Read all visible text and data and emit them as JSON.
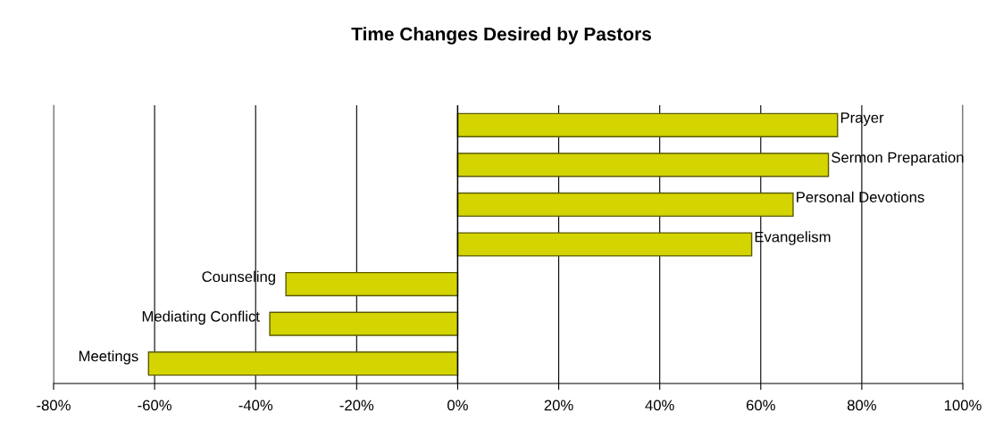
{
  "chart_data": {
    "type": "bar",
    "orientation": "horizontal",
    "title": "Time Changes Desired by Pastors",
    "categories": [
      "Prayer",
      "Sermon Preparation",
      "Personal Devotions",
      "Evangelism",
      "Counseling",
      "Mediating Conflict",
      "Meetings"
    ],
    "values": [
      0.752,
      0.734,
      0.664,
      0.582,
      -0.34,
      -0.372,
      -0.612
    ],
    "color": "#d4d400",
    "xlim": [
      -0.8,
      1.0
    ],
    "xticks": [
      {
        "value": -0.8,
        "label": "-80%"
      },
      {
        "value": -0.6,
        "label": "-60%"
      },
      {
        "value": -0.4,
        "label": "-40%"
      },
      {
        "value": -0.2,
        "label": "-20%"
      },
      {
        "value": 0,
        "label": "0%"
      },
      {
        "value": 0.2,
        "label": "20%"
      },
      {
        "value": 0.4,
        "label": "40%"
      },
      {
        "value": 0.6,
        "label": "60%"
      },
      {
        "value": 0.8,
        "label": "80%"
      },
      {
        "value": 1.0,
        "label": "100%"
      }
    ],
    "grid": "x",
    "legend": false
  }
}
